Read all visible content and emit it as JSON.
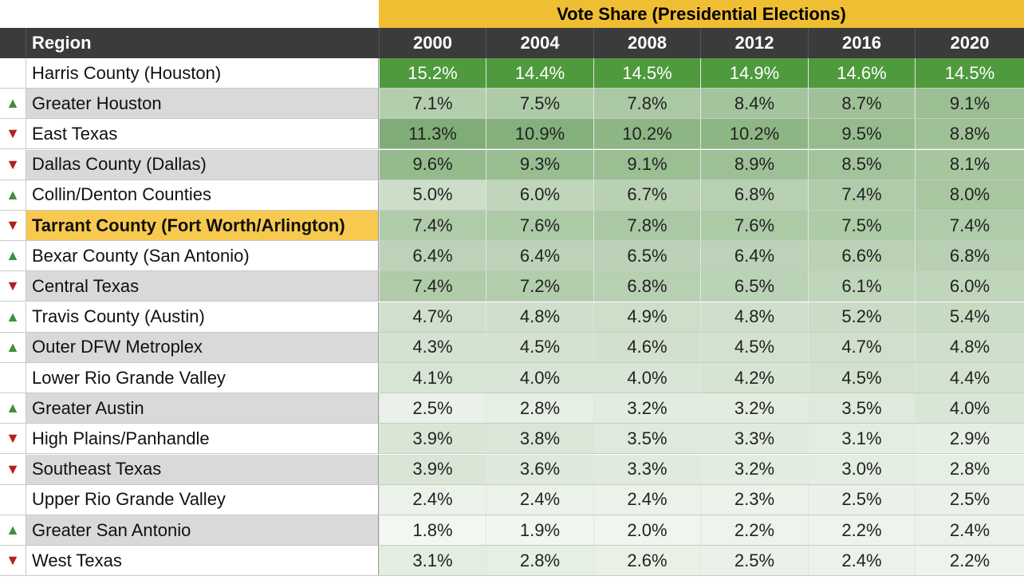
{
  "title": "Vote Share (Presidential Elections)",
  "columns": {
    "region": "Region",
    "years": [
      "2000",
      "2004",
      "2008",
      "2012",
      "2016",
      "2020"
    ]
  },
  "colors": {
    "title_bg": "#f0be32",
    "header_bg": "#3b3b3b",
    "highlight_region_bg": "#f7c94e",
    "arrow_up": "#3e8e3e",
    "arrow_down": "#b32020"
  },
  "rows": [
    {
      "arrow": "",
      "region": "Harris County (Houston)",
      "values": [
        "15.2%",
        "14.4%",
        "14.5%",
        "14.9%",
        "14.6%",
        "14.5%"
      ],
      "shade": "none",
      "highlight": false
    },
    {
      "arrow": "up",
      "region": "Greater Houston",
      "values": [
        "7.1%",
        "7.5%",
        "7.8%",
        "8.4%",
        "8.7%",
        "9.1%"
      ],
      "shade": "gray",
      "highlight": false
    },
    {
      "arrow": "down",
      "region": "East Texas",
      "values": [
        "11.3%",
        "10.9%",
        "10.2%",
        "10.2%",
        "9.5%",
        "8.8%"
      ],
      "shade": "none",
      "highlight": false
    },
    {
      "arrow": "down",
      "region": "Dallas County (Dallas)",
      "values": [
        "9.6%",
        "9.3%",
        "9.1%",
        "8.9%",
        "8.5%",
        "8.1%"
      ],
      "shade": "gray",
      "highlight": false
    },
    {
      "arrow": "up",
      "region": "Collin/Denton Counties",
      "values": [
        "5.0%",
        "6.0%",
        "6.7%",
        "6.8%",
        "7.4%",
        "8.0%"
      ],
      "shade": "none",
      "highlight": false
    },
    {
      "arrow": "down",
      "region": "Tarrant County (Fort Worth/Arlington)",
      "values": [
        "7.4%",
        "7.6%",
        "7.8%",
        "7.6%",
        "7.5%",
        "7.4%"
      ],
      "shade": "gray",
      "highlight": true
    },
    {
      "arrow": "up",
      "region": "Bexar County (San Antonio)",
      "values": [
        "6.4%",
        "6.4%",
        "6.5%",
        "6.4%",
        "6.6%",
        "6.8%"
      ],
      "shade": "none",
      "highlight": false
    },
    {
      "arrow": "down",
      "region": "Central Texas",
      "values": [
        "7.4%",
        "7.2%",
        "6.8%",
        "6.5%",
        "6.1%",
        "6.0%"
      ],
      "shade": "gray",
      "highlight": false
    },
    {
      "arrow": "up",
      "region": "Travis County (Austin)",
      "values": [
        "4.7%",
        "4.8%",
        "4.9%",
        "4.8%",
        "5.2%",
        "5.4%"
      ],
      "shade": "none",
      "highlight": false
    },
    {
      "arrow": "up",
      "region": "Outer DFW Metroplex",
      "values": [
        "4.3%",
        "4.5%",
        "4.6%",
        "4.5%",
        "4.7%",
        "4.8%"
      ],
      "shade": "gray",
      "highlight": false
    },
    {
      "arrow": "",
      "region": "Lower Rio Grande Valley",
      "values": [
        "4.1%",
        "4.0%",
        "4.0%",
        "4.2%",
        "4.5%",
        "4.4%"
      ],
      "shade": "none",
      "highlight": false
    },
    {
      "arrow": "up",
      "region": "Greater Austin",
      "values": [
        "2.5%",
        "2.8%",
        "3.2%",
        "3.2%",
        "3.5%",
        "4.0%"
      ],
      "shade": "gray",
      "highlight": false
    },
    {
      "arrow": "down",
      "region": "High Plains/Panhandle",
      "values": [
        "3.9%",
        "3.8%",
        "3.5%",
        "3.3%",
        "3.1%",
        "2.9%"
      ],
      "shade": "none",
      "highlight": false
    },
    {
      "arrow": "down",
      "region": "Southeast Texas",
      "values": [
        "3.9%",
        "3.6%",
        "3.3%",
        "3.2%",
        "3.0%",
        "2.8%"
      ],
      "shade": "gray",
      "highlight": false
    },
    {
      "arrow": "",
      "region": "Upper Rio Grande Valley",
      "values": [
        "2.4%",
        "2.4%",
        "2.4%",
        "2.3%",
        "2.5%",
        "2.5%"
      ],
      "shade": "none",
      "highlight": false
    },
    {
      "arrow": "up",
      "region": "Greater San Antonio",
      "values": [
        "1.8%",
        "1.9%",
        "2.0%",
        "2.2%",
        "2.2%",
        "2.4%"
      ],
      "shade": "gray",
      "highlight": false
    },
    {
      "arrow": "down",
      "region": "West Texas",
      "values": [
        "3.1%",
        "2.8%",
        "2.6%",
        "2.5%",
        "2.4%",
        "2.2%"
      ],
      "shade": "none",
      "highlight": false
    }
  ]
}
